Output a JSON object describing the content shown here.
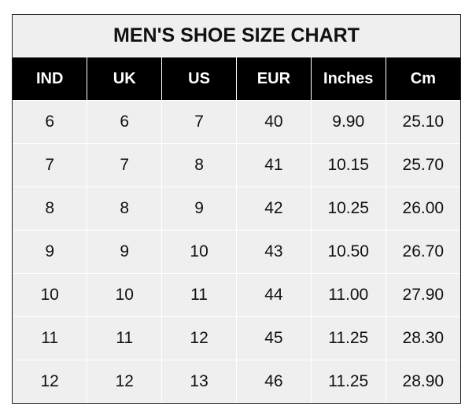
{
  "title": "MEN'S SHOE SIZE CHART",
  "columns": [
    "IND",
    "UK",
    "US",
    "EUR",
    "Inches",
    "Cm"
  ],
  "rows": [
    [
      "6",
      "6",
      "7",
      "40",
      "9.90",
      "25.10"
    ],
    [
      "7",
      "7",
      "8",
      "41",
      "10.15",
      "25.70"
    ],
    [
      "8",
      "8",
      "9",
      "42",
      "10.25",
      "26.00"
    ],
    [
      "9",
      "9",
      "10",
      "43",
      "10.50",
      "26.70"
    ],
    [
      "10",
      "10",
      "11",
      "44",
      "11.00",
      "27.90"
    ],
    [
      "11",
      "11",
      "12",
      "45",
      "11.25",
      "28.30"
    ],
    [
      "12",
      "12",
      "13",
      "46",
      "11.25",
      "28.90"
    ]
  ],
  "colors": {
    "header_bg": "#000000",
    "cell_bg": "#efefef",
    "grid": "#ffffff"
  }
}
